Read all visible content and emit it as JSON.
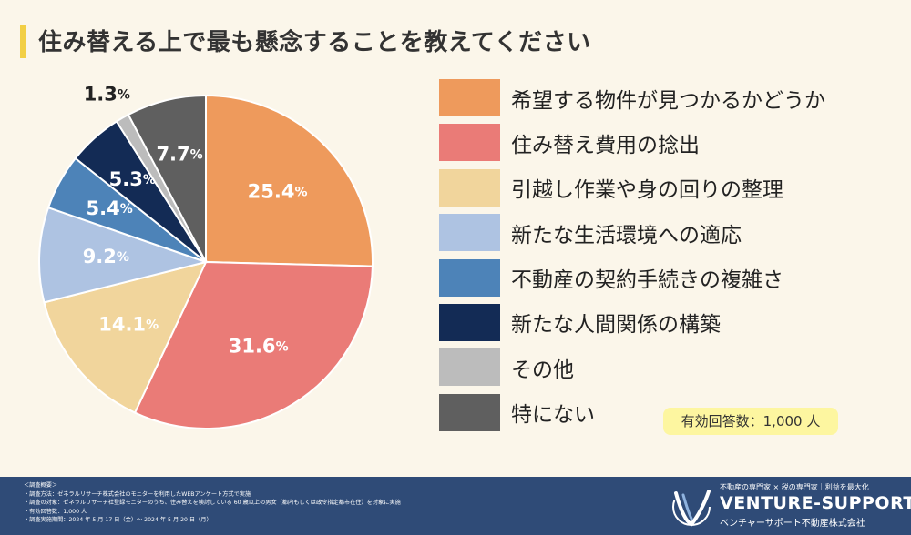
{
  "title": "住み替える上で最も懸念することを教えてください",
  "chart_data": {
    "type": "pie",
    "start": "12 o'clock, clockwise",
    "slices": [
      {
        "label": "希望する物件が見つかるかどうか",
        "value": 25.4,
        "display": "25.4",
        "color": "#ee9a5c",
        "text_color": "#ffffff"
      },
      {
        "label": "住み替え費用の捻出",
        "value": 31.6,
        "display": "31.6",
        "color": "#ea7b77",
        "text_color": "#ffffff"
      },
      {
        "label": "引越し作業や身の回りの整理",
        "value": 14.1,
        "display": "14.1",
        "color": "#f1d59c",
        "text_color": "#ffffff"
      },
      {
        "label": "新たな生活環境への適応",
        "value": 9.2,
        "display": "9.2",
        "color": "#aec3e2",
        "text_color": "#ffffff"
      },
      {
        "label": "不動産の契約手続きの複雑さ",
        "value": 5.4,
        "display": "5.4",
        "color": "#4d83b8",
        "text_color": "#ffffff"
      },
      {
        "label": "新たな人間関係の構築",
        "value": 5.3,
        "display": "5.3",
        "color": "#132b55",
        "text_color": "#ffffff"
      },
      {
        "label": "その他",
        "value": 1.3,
        "display": "1.3",
        "color": "#bcbcbc",
        "text_color": "#222222"
      },
      {
        "label": "特にない",
        "value": 7.7,
        "display": "7.7",
        "color": "#5f5f5f",
        "text_color": "#ffffff"
      }
    ],
    "unit": "%"
  },
  "respondents": "有効回答数：1,000 人",
  "footer": {
    "notes": [
      "＜調査概要＞",
      "・調査方法：ゼネラルリサーチ株式会社のモニターを利用したWEBアンケート方式で実施",
      "・調査の対象：ゼネラルリサーチ社登録モニターのうち、住み替えを検討している 60 歳以上の男女（都内もしくは政令指定都市在住）を対象に実施",
      "・有効回答数：1,000 人",
      "・調査実施期間：2024 年 5 月 17 日（金）〜 2024 年 5 月 20 日（月）"
    ],
    "tagline": "不動産の専門家 × 税の専門家｜利益を最大化",
    "brand": "VENTURE-SUPPORT",
    "brand_sub": "ベンチャーサポート不動産株式会社"
  }
}
